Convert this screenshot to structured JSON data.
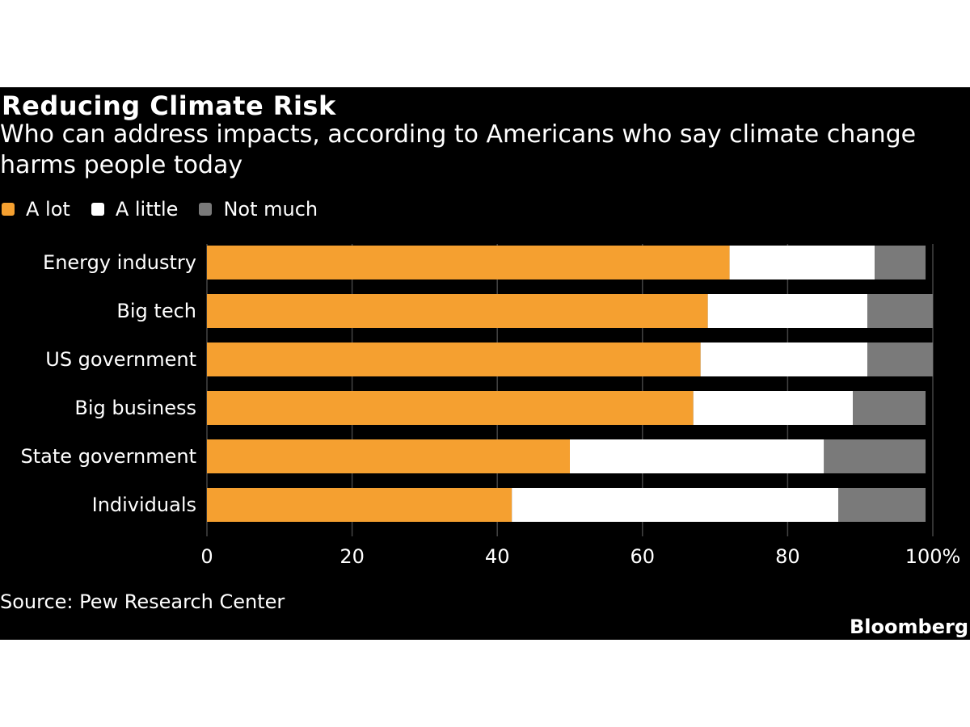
{
  "colors": {
    "background": "#000000",
    "a_lot": "#f5a030",
    "a_little": "#ffffff",
    "not_much": "#7a7a7a",
    "text": "#ffffff",
    "grid": "#444444"
  },
  "header": {
    "title": "Reducing Climate Risk",
    "subtitle": "Who can address impacts, according to Americans who say climate change harms people today"
  },
  "legend": [
    {
      "label": "A lot",
      "color": "#f5a030"
    },
    {
      "label": "A little",
      "color": "#ffffff"
    },
    {
      "label": "Not much",
      "color": "#7a7a7a"
    }
  ],
  "chart_data": {
    "type": "bar",
    "orientation": "horizontal",
    "stacked": true,
    "categories": [
      "Energy industry",
      "Big tech",
      "US government",
      "Big business",
      "State government",
      "Individuals"
    ],
    "series": [
      {
        "name": "A lot",
        "color": "#f5a030",
        "values": [
          72,
          69,
          68,
          67,
          50,
          42
        ]
      },
      {
        "name": "A little",
        "color": "#ffffff",
        "values": [
          20,
          22,
          23,
          22,
          35,
          45
        ]
      },
      {
        "name": "Not much",
        "color": "#7a7a7a",
        "values": [
          7,
          9,
          9,
          10,
          14,
          12
        ]
      }
    ],
    "xlim": [
      0,
      100
    ],
    "xticks": [
      0,
      20,
      40,
      60,
      80,
      100
    ],
    "xtick_labels": [
      "0",
      "20",
      "40",
      "60",
      "80",
      "100%"
    ],
    "grid": true
  },
  "footer": {
    "source": "Source: Pew Research Center",
    "brand": "Bloomberg"
  }
}
